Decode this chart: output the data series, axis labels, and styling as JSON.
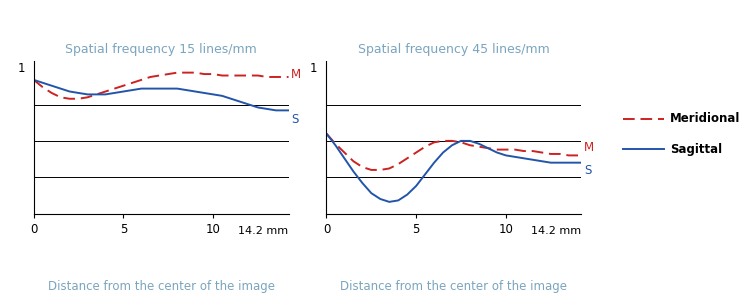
{
  "title1": "Spatial frequency 15 lines/mm",
  "title2": "Spatial frequency 45 lines/mm",
  "xlabel_label": "Distance from the center of the image",
  "xmax": 14.2,
  "ylim": [
    0,
    1.05
  ],
  "title_color": "#7aa5be",
  "xlabel_color": "#7aa5be",
  "meridional_color": "#cc2222",
  "sagittal_color": "#2255aa",
  "label_color_M": "#cc2222",
  "label_color_S": "#2255aa",
  "legend_meridional": "Meridional",
  "legend_sagittal": "Sagittal",
  "plot1_meridional_x": [
    0,
    0.5,
    1.0,
    1.5,
    2.0,
    2.5,
    3.0,
    3.5,
    4.0,
    4.5,
    5.0,
    5.5,
    6.0,
    6.5,
    7.0,
    7.5,
    8.0,
    8.5,
    9.0,
    9.5,
    10.0,
    10.5,
    11.0,
    11.5,
    12.0,
    12.5,
    13.0,
    13.5,
    14.0,
    14.2
  ],
  "plot1_meridional_y": [
    0.92,
    0.87,
    0.83,
    0.8,
    0.79,
    0.79,
    0.8,
    0.82,
    0.84,
    0.86,
    0.88,
    0.9,
    0.92,
    0.94,
    0.95,
    0.96,
    0.97,
    0.97,
    0.97,
    0.96,
    0.96,
    0.95,
    0.95,
    0.95,
    0.95,
    0.95,
    0.94,
    0.94,
    0.94,
    0.94
  ],
  "plot1_sagittal_x": [
    0,
    0.5,
    1.0,
    1.5,
    2.0,
    2.5,
    3.0,
    3.5,
    4.0,
    4.5,
    5.0,
    5.5,
    6.0,
    6.5,
    7.0,
    7.5,
    8.0,
    8.5,
    9.0,
    9.5,
    10.0,
    10.5,
    11.0,
    11.5,
    12.0,
    12.5,
    13.0,
    13.5,
    14.0,
    14.2
  ],
  "plot1_sagittal_y": [
    0.92,
    0.9,
    0.88,
    0.86,
    0.84,
    0.83,
    0.82,
    0.82,
    0.82,
    0.83,
    0.84,
    0.85,
    0.86,
    0.86,
    0.86,
    0.86,
    0.86,
    0.85,
    0.84,
    0.83,
    0.82,
    0.81,
    0.79,
    0.77,
    0.75,
    0.73,
    0.72,
    0.71,
    0.71,
    0.71
  ],
  "plot2_meridional_x": [
    0,
    0.5,
    1.0,
    1.5,
    2.0,
    2.5,
    3.0,
    3.5,
    4.0,
    4.5,
    5.0,
    5.5,
    6.0,
    6.5,
    7.0,
    7.5,
    8.0,
    8.5,
    9.0,
    9.5,
    10.0,
    10.5,
    11.0,
    11.5,
    12.0,
    12.5,
    13.0,
    13.5,
    14.0,
    14.2
  ],
  "plot2_meridional_y": [
    0.55,
    0.48,
    0.42,
    0.36,
    0.32,
    0.3,
    0.3,
    0.31,
    0.34,
    0.38,
    0.42,
    0.46,
    0.49,
    0.5,
    0.5,
    0.49,
    0.47,
    0.46,
    0.45,
    0.44,
    0.44,
    0.44,
    0.43,
    0.43,
    0.42,
    0.41,
    0.41,
    0.4,
    0.4,
    0.4
  ],
  "plot2_sagittal_x": [
    0,
    0.5,
    1.0,
    1.5,
    2.0,
    2.5,
    3.0,
    3.5,
    4.0,
    4.5,
    5.0,
    5.5,
    6.0,
    6.5,
    7.0,
    7.5,
    8.0,
    8.5,
    9.0,
    9.5,
    10.0,
    10.5,
    11.0,
    11.5,
    12.0,
    12.5,
    13.0,
    13.5,
    14.0,
    14.2
  ],
  "plot2_sagittal_y": [
    0.55,
    0.47,
    0.38,
    0.29,
    0.21,
    0.14,
    0.1,
    0.08,
    0.09,
    0.13,
    0.19,
    0.27,
    0.35,
    0.42,
    0.47,
    0.5,
    0.5,
    0.48,
    0.45,
    0.42,
    0.4,
    0.39,
    0.38,
    0.37,
    0.36,
    0.35,
    0.35,
    0.35,
    0.35,
    0.35
  ],
  "hlines_y": [
    0.25,
    0.5,
    0.75
  ],
  "grid_color": "#000000",
  "bg_color": "#ffffff"
}
